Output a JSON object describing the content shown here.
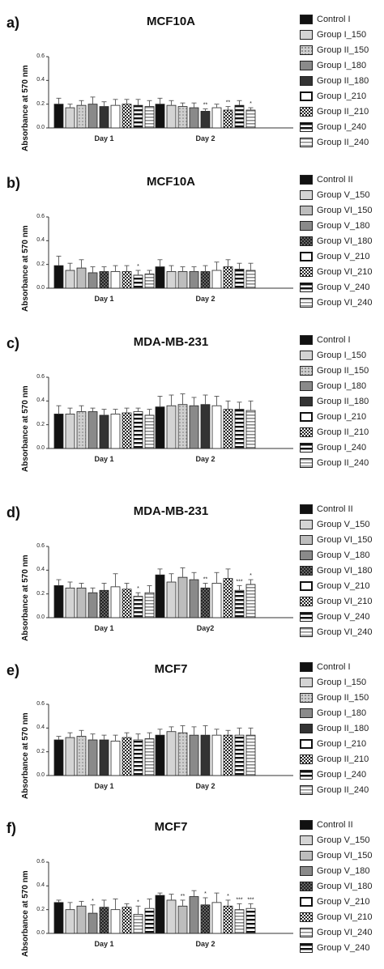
{
  "patterns": {
    "Control I": "solid-black",
    "Control II": "solid-black",
    "Group I_150": "solid-lightgray",
    "Group II_150": "dots-gray",
    "Group I_180": "solid-gray",
    "Group II_180": "solid-darkgray",
    "Group I_210": "white",
    "Group II_210": "checker",
    "Group I_240": "hlines-bold",
    "Group II_240": "hlines-light",
    "Group V_150": "solid-lightgray",
    "Group VI_150": "solid-lightgray2",
    "Group V_180": "solid-gray",
    "Group VI_180": "checker-dark",
    "Group V_210": "white",
    "Group VI_210": "checker",
    "Group V_240": "hlines-bold",
    "Group VI_240": "hlines-light"
  },
  "chart_data": [
    {
      "type": "bar",
      "label": "a)",
      "title": "MCF10A",
      "ylabel": "Absorbance at 570 nm",
      "ylim": [
        0,
        0.6
      ],
      "yticks": [
        "0.0",
        "0.2",
        "0.4",
        "0.6"
      ],
      "categories": [
        "Day 1",
        "Day 2"
      ],
      "legend": [
        "Control I",
        "Group I_150",
        "Group II_150",
        "Group I_180",
        "Group II_180",
        "Group I_210",
        "Group II_210",
        "Group I_240",
        "Group II_240"
      ],
      "series": [
        {
          "name": "Control I",
          "values": [
            0.2,
            0.2
          ],
          "errors": [
            0.05,
            0.05
          ],
          "sig": [
            "",
            ""
          ]
        },
        {
          "name": "Group I_150",
          "values": [
            0.17,
            0.19
          ],
          "errors": [
            0.03,
            0.04
          ],
          "sig": [
            "",
            ""
          ]
        },
        {
          "name": "Group II_150",
          "values": [
            0.19,
            0.18
          ],
          "errors": [
            0.04,
            0.03
          ],
          "sig": [
            "",
            ""
          ]
        },
        {
          "name": "Group I_180",
          "values": [
            0.2,
            0.17
          ],
          "errors": [
            0.06,
            0.04
          ],
          "sig": [
            "",
            ""
          ]
        },
        {
          "name": "Group II_180",
          "values": [
            0.18,
            0.14
          ],
          "errors": [
            0.04,
            0.02
          ],
          "sig": [
            "",
            "**"
          ]
        },
        {
          "name": "Group I_210",
          "values": [
            0.19,
            0.17
          ],
          "errors": [
            0.05,
            0.03
          ],
          "sig": [
            "",
            ""
          ]
        },
        {
          "name": "Group II_210",
          "values": [
            0.2,
            0.15
          ],
          "errors": [
            0.04,
            0.03
          ],
          "sig": [
            "",
            "**"
          ]
        },
        {
          "name": "Group I_240",
          "values": [
            0.19,
            0.19
          ],
          "errors": [
            0.05,
            0.04
          ],
          "sig": [
            "",
            ""
          ]
        },
        {
          "name": "Group II_240",
          "values": [
            0.18,
            0.15
          ],
          "errors": [
            0.05,
            0.02
          ],
          "sig": [
            "",
            "*"
          ]
        }
      ]
    },
    {
      "type": "bar",
      "label": "b)",
      "title": "MCF10A",
      "ylabel": "Absorbance at 570 nm",
      "ylim": [
        0,
        0.6
      ],
      "yticks": [
        "0.0",
        "0.2",
        "0.4",
        "0.6"
      ],
      "categories": [
        "Day 1",
        "Day 2"
      ],
      "legend": [
        "Control II",
        "Group V_150",
        "Group VI_150",
        "Group V_180",
        "Group VI_180",
        "Group V_210",
        "Group VI_210",
        "Group V_240",
        "Group VI_240"
      ],
      "series": [
        {
          "name": "Control II",
          "values": [
            0.19,
            0.18
          ],
          "errors": [
            0.08,
            0.06
          ],
          "sig": [
            "",
            ""
          ]
        },
        {
          "name": "Group V_150",
          "values": [
            0.15,
            0.14
          ],
          "errors": [
            0.06,
            0.05
          ],
          "sig": [
            "",
            ""
          ]
        },
        {
          "name": "Group VI_150",
          "values": [
            0.17,
            0.14
          ],
          "errors": [
            0.07,
            0.04
          ],
          "sig": [
            "",
            ""
          ]
        },
        {
          "name": "Group V_180",
          "values": [
            0.13,
            0.14
          ],
          "errors": [
            0.05,
            0.04
          ],
          "sig": [
            "",
            ""
          ]
        },
        {
          "name": "Group VI_180",
          "values": [
            0.14,
            0.14
          ],
          "errors": [
            0.04,
            0.05
          ],
          "sig": [
            "",
            ""
          ]
        },
        {
          "name": "Group V_210",
          "values": [
            0.14,
            0.15
          ],
          "errors": [
            0.05,
            0.07
          ],
          "sig": [
            "",
            ""
          ]
        },
        {
          "name": "Group VI_210",
          "values": [
            0.14,
            0.18
          ],
          "errors": [
            0.05,
            0.06
          ],
          "sig": [
            "",
            ""
          ]
        },
        {
          "name": "Group V_240",
          "values": [
            0.11,
            0.16
          ],
          "errors": [
            0.04,
            0.05
          ],
          "sig": [
            "*",
            ""
          ]
        },
        {
          "name": "Group VI_240",
          "values": [
            0.12,
            0.15
          ],
          "errors": [
            0.03,
            0.06
          ],
          "sig": [
            "",
            ""
          ]
        }
      ]
    },
    {
      "type": "bar",
      "label": "c)",
      "title": "MDA-MB-231",
      "ylabel": "Absorbance at 570 nm",
      "ylim": [
        0,
        0.6
      ],
      "yticks": [
        "0.0",
        "0.2",
        "0.4",
        "0.6"
      ],
      "categories": [
        "Day 1",
        "Day 2"
      ],
      "legend": [
        "Control I",
        "Group I_150",
        "Group II_150",
        "Group I_180",
        "Group II_180",
        "Group I_210",
        "Group II_210",
        "Group I_240",
        "Group II_240"
      ],
      "series": [
        {
          "name": "Control I",
          "values": [
            0.29,
            0.35
          ],
          "errors": [
            0.07,
            0.09
          ],
          "sig": [
            "",
            ""
          ]
        },
        {
          "name": "Group I_150",
          "values": [
            0.29,
            0.36
          ],
          "errors": [
            0.05,
            0.09
          ],
          "sig": [
            "",
            ""
          ]
        },
        {
          "name": "Group II_150",
          "values": [
            0.31,
            0.37
          ],
          "errors": [
            0.05,
            0.09
          ],
          "sig": [
            "",
            ""
          ]
        },
        {
          "name": "Group I_180",
          "values": [
            0.31,
            0.36
          ],
          "errors": [
            0.03,
            0.07
          ],
          "sig": [
            "",
            ""
          ]
        },
        {
          "name": "Group II_180",
          "values": [
            0.28,
            0.37
          ],
          "errors": [
            0.05,
            0.08
          ],
          "sig": [
            "",
            ""
          ]
        },
        {
          "name": "Group I_210",
          "values": [
            0.29,
            0.36
          ],
          "errors": [
            0.04,
            0.08
          ],
          "sig": [
            "",
            ""
          ]
        },
        {
          "name": "Group II_210",
          "values": [
            0.3,
            0.33
          ],
          "errors": [
            0.04,
            0.07
          ],
          "sig": [
            "",
            ""
          ]
        },
        {
          "name": "Group I_240",
          "values": [
            0.31,
            0.33
          ],
          "errors": [
            0.03,
            0.06
          ],
          "sig": [
            "",
            ""
          ]
        },
        {
          "name": "Group II_240",
          "values": [
            0.28,
            0.32
          ],
          "errors": [
            0.05,
            0.08
          ],
          "sig": [
            "",
            ""
          ]
        }
      ]
    },
    {
      "type": "bar",
      "label": "d)",
      "title": "MDA-MB-231",
      "ylabel": "Absorbance at 570 nm",
      "ylim": [
        0,
        0.6
      ],
      "yticks": [
        "0.0",
        "0.2",
        "0.4",
        "0.6"
      ],
      "categories": [
        "Day 1",
        "Day2"
      ],
      "legend": [
        "Control II",
        "Group V_150",
        "Group VI_150",
        "Group V_180",
        "Group VI_180",
        "Group V_210",
        "Group VI_210",
        "Group V_240",
        "Group VI_240"
      ],
      "series": [
        {
          "name": "Control II",
          "values": [
            0.27,
            0.36
          ],
          "errors": [
            0.05,
            0.05
          ],
          "sig": [
            "",
            ""
          ]
        },
        {
          "name": "Group V_150",
          "values": [
            0.25,
            0.3
          ],
          "errors": [
            0.05,
            0.07
          ],
          "sig": [
            "",
            ""
          ]
        },
        {
          "name": "Group VI_150",
          "values": [
            0.25,
            0.34
          ],
          "errors": [
            0.04,
            0.08
          ],
          "sig": [
            "",
            ""
          ]
        },
        {
          "name": "Group V_180",
          "values": [
            0.21,
            0.32
          ],
          "errors": [
            0.04,
            0.06
          ],
          "sig": [
            "",
            ""
          ]
        },
        {
          "name": "Group VI_180",
          "values": [
            0.23,
            0.25
          ],
          "errors": [
            0.06,
            0.04
          ],
          "sig": [
            "",
            "**"
          ]
        },
        {
          "name": "Group V_210",
          "values": [
            0.26,
            0.29
          ],
          "errors": [
            0.11,
            0.09
          ],
          "sig": [
            "",
            ""
          ]
        },
        {
          "name": "Group VI_210",
          "values": [
            0.24,
            0.33
          ],
          "errors": [
            0.05,
            0.08
          ],
          "sig": [
            "",
            ""
          ]
        },
        {
          "name": "Group V_240",
          "values": [
            0.18,
            0.23
          ],
          "errors": [
            0.03,
            0.04
          ],
          "sig": [
            "*",
            "***"
          ]
        },
        {
          "name": "Group VI_240",
          "values": [
            0.21,
            0.28
          ],
          "errors": [
            0.06,
            0.04
          ],
          "sig": [
            "",
            "*"
          ]
        }
      ]
    },
    {
      "type": "bar",
      "label": "e)",
      "title": "MCF7",
      "ylabel": "Absorbance at 570 nm",
      "ylim": [
        0,
        0.6
      ],
      "yticks": [
        "0.0",
        "0.2",
        "0.4",
        "0.6"
      ],
      "categories": [
        "Day 1",
        "Day 2"
      ],
      "legend": [
        "Control I",
        "Group I_150",
        "Group II_150",
        "Group I_180",
        "Group II_180",
        "Group I_210",
        "Group II_210",
        "Group I_240",
        "Group II_240"
      ],
      "series": [
        {
          "name": "Control I",
          "values": [
            0.3,
            0.34
          ],
          "errors": [
            0.03,
            0.05
          ],
          "sig": [
            "",
            ""
          ]
        },
        {
          "name": "Group I_150",
          "values": [
            0.32,
            0.37
          ],
          "errors": [
            0.04,
            0.04
          ],
          "sig": [
            "",
            ""
          ]
        },
        {
          "name": "Group II_150",
          "values": [
            0.33,
            0.36
          ],
          "errors": [
            0.05,
            0.06
          ],
          "sig": [
            "",
            ""
          ]
        },
        {
          "name": "Group I_180",
          "values": [
            0.3,
            0.34
          ],
          "errors": [
            0.05,
            0.07
          ],
          "sig": [
            "",
            ""
          ]
        },
        {
          "name": "Group II_180",
          "values": [
            0.3,
            0.34
          ],
          "errors": [
            0.04,
            0.08
          ],
          "sig": [
            "",
            ""
          ]
        },
        {
          "name": "Group I_210",
          "values": [
            0.29,
            0.34
          ],
          "errors": [
            0.05,
            0.05
          ],
          "sig": [
            "",
            ""
          ]
        },
        {
          "name": "Group II_210",
          "values": [
            0.32,
            0.34
          ],
          "errors": [
            0.04,
            0.04
          ],
          "sig": [
            "",
            ""
          ]
        },
        {
          "name": "Group I_240",
          "values": [
            0.3,
            0.34
          ],
          "errors": [
            0.05,
            0.06
          ],
          "sig": [
            "",
            ""
          ]
        },
        {
          "name": "Group II_240",
          "values": [
            0.31,
            0.34
          ],
          "errors": [
            0.05,
            0.06
          ],
          "sig": [
            "",
            ""
          ]
        }
      ]
    },
    {
      "type": "bar",
      "label": "f)",
      "title": "MCF7",
      "ylabel": "Absorbance at 570 nm",
      "ylim": [
        0,
        0.6
      ],
      "yticks": [
        "0.0",
        "0.2",
        "0.4",
        "0.6"
      ],
      "categories": [
        "Day 1",
        "Day 2"
      ],
      "legend": [
        "Control II",
        "Group V_150",
        "Group VI_150",
        "Group V_180",
        "Group VI_180",
        "Group V_210",
        "Group VI_210",
        "Group VI_240",
        "Group V_240"
      ],
      "series": [
        {
          "name": "Control II",
          "values": [
            0.26,
            0.32
          ],
          "errors": [
            0.02,
            0.02
          ],
          "sig": [
            "",
            ""
          ]
        },
        {
          "name": "Group V_150",
          "values": [
            0.2,
            0.28
          ],
          "errors": [
            0.06,
            0.05
          ],
          "sig": [
            "",
            ""
          ]
        },
        {
          "name": "Group VI_150",
          "values": [
            0.23,
            0.23
          ],
          "errors": [
            0.04,
            0.05
          ],
          "sig": [
            "",
            "**"
          ]
        },
        {
          "name": "Group V_180",
          "values": [
            0.17,
            0.31
          ],
          "errors": [
            0.07,
            0.05
          ],
          "sig": [
            "*",
            ""
          ]
        },
        {
          "name": "Group VI_180",
          "values": [
            0.22,
            0.24
          ],
          "errors": [
            0.06,
            0.06
          ],
          "sig": [
            "",
            "*"
          ]
        },
        {
          "name": "Group V_210",
          "values": [
            0.2,
            0.26
          ],
          "errors": [
            0.09,
            0.08
          ],
          "sig": [
            "",
            ""
          ]
        },
        {
          "name": "Group VI_210",
          "values": [
            0.22,
            0.23
          ],
          "errors": [
            0.03,
            0.05
          ],
          "sig": [
            "",
            "*"
          ]
        },
        {
          "name": "Group VI_240",
          "values": [
            0.16,
            0.2
          ],
          "errors": [
            0.07,
            0.05
          ],
          "sig": [
            "*",
            "***"
          ]
        },
        {
          "name": "Group V_240",
          "values": [
            0.21,
            0.21
          ],
          "errors": [
            0.08,
            0.04
          ],
          "sig": [
            "",
            "***"
          ]
        }
      ]
    }
  ]
}
